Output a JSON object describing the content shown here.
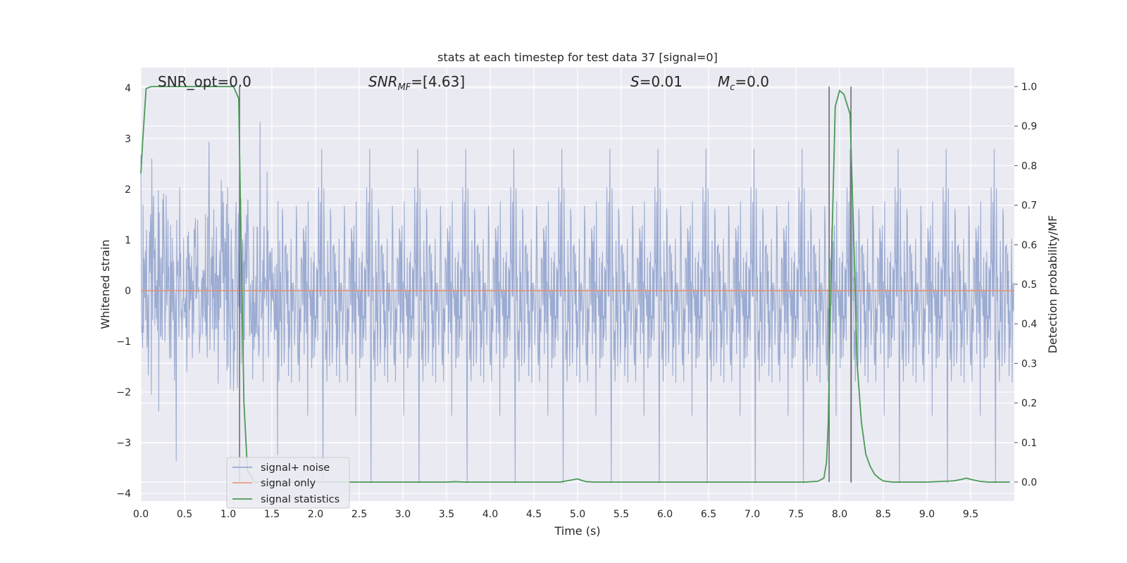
{
  "chart_data": {
    "type": "line",
    "title": "stats at each timestep for test data 37 [signal=0]",
    "xlabel": "Time (s)",
    "ylabel": "Whitened strain",
    "y2label": "Detection probability/MF",
    "xlim": [
      0.0,
      10.0
    ],
    "ylim": [
      -4.15,
      4.4
    ],
    "y2lim": [
      -0.048,
      1.048
    ],
    "x_ticks": [
      "0.0",
      "0.5",
      "1.0",
      "1.5",
      "2.0",
      "2.5",
      "3.0",
      "3.5",
      "4.0",
      "4.5",
      "5.0",
      "5.5",
      "6.0",
      "6.5",
      "7.0",
      "7.5",
      "8.0",
      "8.5",
      "9.0",
      "9.5"
    ],
    "y_ticks": [
      "4",
      "3",
      "2",
      "1",
      "0",
      "−1",
      "−2",
      "−3",
      "−4"
    ],
    "y2_ticks": [
      "1.0",
      "0.9",
      "0.8",
      "0.7",
      "0.6",
      "0.5",
      "0.4",
      "0.3",
      "0.2",
      "0.1",
      "0.0"
    ],
    "grid": true,
    "legend_position": "lower-left",
    "annotations": {
      "snr_opt": "SNR_opt=0.0",
      "snr_mf_sym": "SNR",
      "snr_mf_sub": "MF",
      "snr_mf_val": "=[4.63]",
      "s_sym": "S",
      "s_val": "=0.01",
      "mc_sym": "M",
      "mc_sub": "c",
      "mc_val": "=0.0"
    },
    "series": [
      {
        "name": "signal+ noise",
        "color": "#8da0cb",
        "note": "dense whitened noise, approx. range -3.8 to 4.0",
        "sample_rate_hz": 200,
        "amplitude_sigma": 1.05
      },
      {
        "name": "signal only",
        "color": "#e8906c",
        "x": [
          0.0,
          10.0
        ],
        "y": [
          0.0,
          0.0
        ]
      },
      {
        "name": "signal statistics",
        "color": "#4a9a56",
        "axis": "right",
        "x": [
          0.0,
          0.02,
          0.06,
          0.12,
          0.25,
          0.5,
          0.8,
          1.0,
          1.06,
          1.12,
          1.14,
          1.18,
          1.22,
          1.3,
          1.5,
          2.0,
          3.0,
          3.5,
          3.6,
          3.7,
          4.0,
          4.5,
          4.8,
          4.9,
          5.0,
          5.05,
          5.1,
          5.2,
          6.0,
          7.0,
          7.6,
          7.75,
          7.82,
          7.85,
          7.87,
          7.9,
          7.95,
          8.0,
          8.05,
          8.12,
          8.17,
          8.2,
          8.25,
          8.3,
          8.35,
          8.4,
          8.45,
          8.5,
          8.6,
          9.0,
          9.3,
          9.4,
          9.45,
          9.5,
          9.6,
          9.7,
          9.95
        ],
        "y": [
          0.78,
          0.86,
          0.995,
          1.0,
          1.0,
          1.0,
          1.0,
          1.0,
          1.0,
          0.97,
          0.7,
          0.2,
          0.03,
          0.0,
          0.0,
          0.0,
          0.0,
          0.0,
          0.001,
          0.0,
          0.0,
          0.0,
          0.0,
          0.004,
          0.008,
          0.004,
          0.001,
          0.0,
          0.0,
          0.0,
          0.0,
          0.002,
          0.01,
          0.05,
          0.15,
          0.5,
          0.95,
          0.99,
          0.98,
          0.93,
          0.55,
          0.3,
          0.15,
          0.07,
          0.04,
          0.02,
          0.01,
          0.003,
          0.0,
          0.0,
          0.003,
          0.007,
          0.01,
          0.007,
          0.002,
          0.0,
          0.0
        ]
      }
    ],
    "vlines_x": [
      1.13,
      7.88,
      8.13
    ]
  }
}
